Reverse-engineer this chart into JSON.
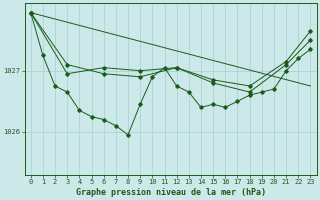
{
  "title": "Graphe pression niveau de la mer (hPa)",
  "bg_color": "#cce8e8",
  "grid_color": "#aad4d4",
  "line_color": "#1a5c1a",
  "xlim": [
    -0.5,
    23.5
  ],
  "ylim": [
    1025.3,
    1028.1
  ],
  "yticks": [
    1026,
    1027
  ],
  "xticks": [
    0,
    1,
    2,
    3,
    4,
    5,
    6,
    7,
    8,
    9,
    10,
    11,
    12,
    13,
    14,
    15,
    16,
    17,
    18,
    19,
    20,
    21,
    22,
    23
  ],
  "series": [
    {
      "x": [
        0,
        1,
        2,
        3,
        4,
        5,
        6,
        7,
        8,
        9,
        10,
        11,
        12,
        13,
        14,
        15,
        16,
        17,
        18,
        19,
        20,
        21,
        22,
        23
      ],
      "y": [
        1027.95,
        1027.25,
        1026.75,
        1026.65,
        1026.35,
        1026.25,
        1026.2,
        1026.1,
        1025.95,
        1026.45,
        1026.9,
        1027.05,
        1026.75,
        1026.65,
        1026.4,
        1026.45,
        1026.4,
        1026.5,
        1026.6,
        1026.65,
        1026.7,
        1027.0,
        1027.2,
        1027.35
      ]
    },
    {
      "x": [
        0,
        3,
        6,
        9,
        12,
        15,
        18,
        21,
        23
      ],
      "y": [
        1027.95,
        1027.1,
        1026.95,
        1026.9,
        1027.05,
        1026.8,
        1026.65,
        1027.1,
        1027.5
      ]
    },
    {
      "x": [
        0,
        3,
        6,
        9,
        12,
        15,
        18,
        21,
        23
      ],
      "y": [
        1027.95,
        1026.95,
        1027.05,
        1027.0,
        1027.05,
        1026.85,
        1026.75,
        1027.15,
        1027.65
      ]
    },
    {
      "x": [
        0,
        23
      ],
      "y": [
        1027.95,
        1026.75
      ]
    }
  ],
  "tick_fontsize": 5.0,
  "label_fontsize": 6.0
}
